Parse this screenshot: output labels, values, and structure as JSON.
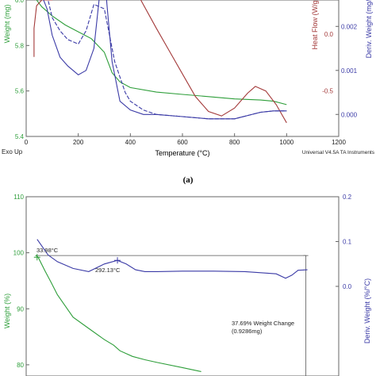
{
  "colors": {
    "weight": "#2e9e3a",
    "heat": "#a33a3a",
    "deriv": "#3a3aa6",
    "axis": "#666666"
  },
  "panel_label": "(a)",
  "chart_data": [
    {
      "type": "line",
      "xlabel": "Temperature (°C)",
      "ylabels": {
        "left": "Weight (mg)",
        "right1": "Heat Flow (W/g)",
        "right2": "Deriv. Weight (mg/°C)"
      },
      "xlim": [
        0,
        1200
      ],
      "x_ticks": [
        "0",
        "200",
        "400",
        "600",
        "800",
        "1000",
        "1200"
      ],
      "ylim_left": [
        5.4,
        6.0
      ],
      "left_ticks": [
        "5.4",
        "5.6",
        "5.8",
        "6.0"
      ],
      "ylim_heat": [
        -0.9,
        0.3
      ],
      "heat_ticks": [
        "-0.5",
        "0.0"
      ],
      "ylim_deriv": [
        -0.0005,
        0.0026
      ],
      "deriv_ticks": [
        "0.000",
        "0.001",
        "0.002"
      ],
      "footer_left": "Exo Up",
      "footer_right": "Universal V4.5A TA Instruments",
      "series": [
        {
          "axis": "left",
          "x": [
            30,
            40,
            60,
            80,
            100,
            150,
            200,
            250,
            300,
            330,
            360,
            400,
            500,
            600,
            700,
            800,
            900,
            950,
            1000
          ],
          "y": [
            6.02,
            6.0,
            5.97,
            5.95,
            5.93,
            5.89,
            5.86,
            5.83,
            5.77,
            5.68,
            5.64,
            5.615,
            5.595,
            5.585,
            5.575,
            5.565,
            5.56,
            5.555,
            5.54
          ]
        },
        {
          "axis": "heat",
          "x": [
            30,
            30,
            40,
            60,
            100,
            120,
            200,
            300,
            400,
            440,
            500,
            550,
            600,
            650,
            700,
            750,
            800,
            850,
            880,
            920,
            960,
            1000
          ],
          "y": [
            -0.2,
            0.05,
            0.25,
            0.3,
            0.3,
            0.35,
            0.5,
            0.6,
            0.5,
            0.3,
            0.05,
            -0.15,
            -0.35,
            -0.55,
            -0.68,
            -0.72,
            -0.65,
            -0.52,
            -0.46,
            -0.5,
            -0.62,
            -0.78
          ]
        },
        {
          "axis": "deriv",
          "x": [
            30,
            60,
            80,
            100,
            130,
            160,
            200,
            230,
            260,
            280,
            300,
            310,
            330,
            360,
            400,
            450,
            500,
            600,
            700,
            800,
            900,
            950,
            1000
          ],
          "y": [
            0.0027,
            0.0027,
            0.0024,
            0.0018,
            0.0013,
            0.0011,
            0.0009,
            0.001,
            0.0015,
            0.0026,
            0.0033,
            0.0025,
            0.0012,
            0.0003,
            0.0001,
            0.0,
            0.0,
            -5e-05,
            -0.0001,
            -0.0001,
            5e-05,
            8e-05,
            8e-05
          ]
        },
        {
          "axis": "deriv",
          "x": [
            80,
            100,
            130,
            160,
            200,
            230,
            260,
            300,
            340,
            380,
            400,
            450,
            500,
            600,
            700,
            800,
            900,
            950,
            1000
          ],
          "y": [
            0.0027,
            0.0022,
            0.0019,
            0.0017,
            0.0016,
            0.0019,
            0.0025,
            0.0024,
            0.0012,
            0.0005,
            0.0003,
            0.0001,
            0.0,
            -5e-05,
            -0.0001,
            -0.0001,
            5e-05,
            8e-05,
            8e-05
          ]
        }
      ]
    },
    {
      "type": "line",
      "ylabels": {
        "left": "Weight (%)",
        "right": "Deriv. Weight (%/°C)"
      },
      "xlim": [
        0,
        1000
      ],
      "ylim_left": [
        78,
        110
      ],
      "left_ticks": [
        "80",
        "90",
        "100",
        "110"
      ],
      "ylim_right": [
        -0.2,
        0.2
      ],
      "right_ticks": [
        "0.0",
        "0.1",
        "0.2"
      ],
      "annotations": [
        "33.98°C",
        "292.13°C",
        "37.69% Weight Change",
        "(0.9286mg)"
      ],
      "series": [
        {
          "axis": "left",
          "x": [
            30,
            35,
            40,
            60,
            80,
            100,
            150,
            200,
            250,
            280,
            300,
            340,
            380,
            420,
            500,
            560
          ],
          "y": [
            99.5,
            99.4,
            99.0,
            96.8,
            94.7,
            92.5,
            88.5,
            86.5,
            84.5,
            83.5,
            82.5,
            81.5,
            80.9,
            80.4,
            79.5,
            78.8
          ]
        },
        {
          "axis": "right",
          "x": [
            35,
            50,
            70,
            100,
            150,
            200,
            250,
            292,
            320,
            350,
            380,
            420,
            500,
            600,
            700,
            760,
            800,
            830,
            850,
            870,
            900
          ],
          "y": [
            0.105,
            0.09,
            0.07,
            0.055,
            0.04,
            0.033,
            0.05,
            0.058,
            0.05,
            0.037,
            0.033,
            0.033,
            0.034,
            0.034,
            0.033,
            0.03,
            0.028,
            0.018,
            0.025,
            0.036,
            0.037
          ]
        }
      ]
    }
  ]
}
